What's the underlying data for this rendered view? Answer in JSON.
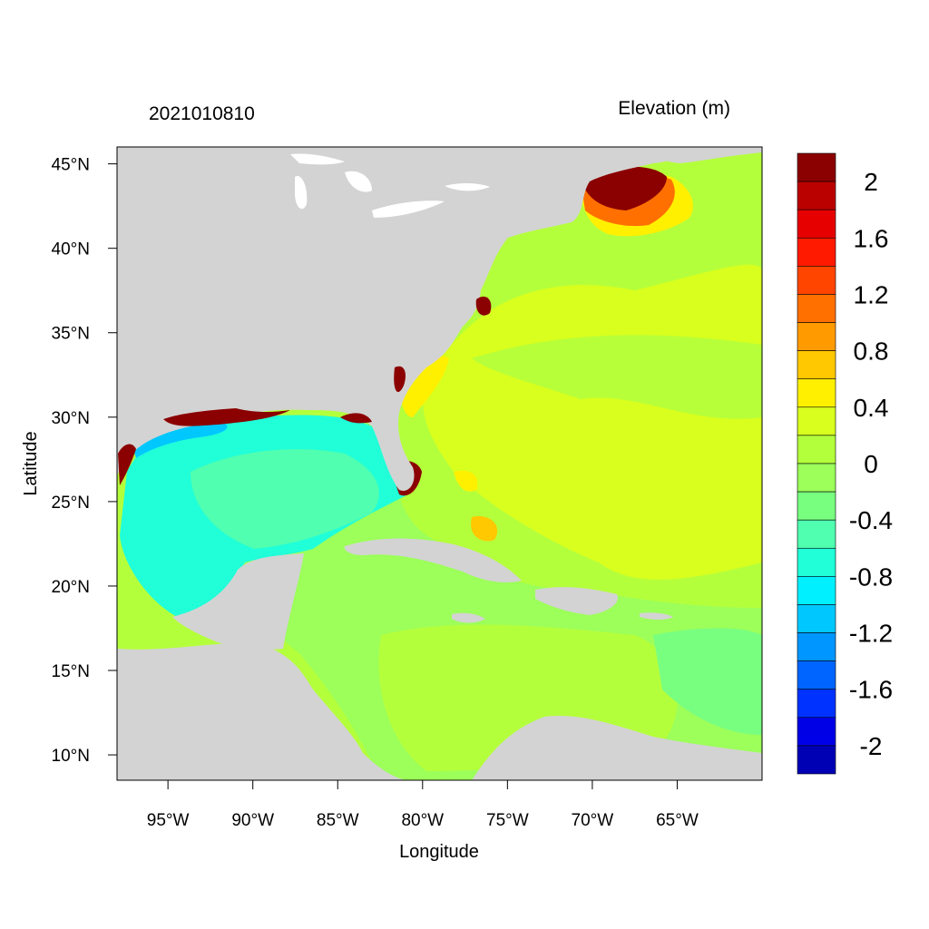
{
  "header": {
    "timestamp": "2021010810",
    "variable": "Elevation (m)"
  },
  "axes": {
    "xlabel": "Longitude",
    "ylabel": "Latitude",
    "xticks": [
      {
        "value": -95,
        "label": "95°W"
      },
      {
        "value": -90,
        "label": "90°W"
      },
      {
        "value": -85,
        "label": "85°W"
      },
      {
        "value": -80,
        "label": "80°W"
      },
      {
        "value": -75,
        "label": "75°W"
      },
      {
        "value": -70,
        "label": "70°W"
      },
      {
        "value": -65,
        "label": "65°W"
      }
    ],
    "yticks": [
      {
        "value": 45,
        "label": "45°N"
      },
      {
        "value": 40,
        "label": "40°N"
      },
      {
        "value": 35,
        "label": "35°N"
      },
      {
        "value": 30,
        "label": "30°N"
      },
      {
        "value": 25,
        "label": "25°N"
      },
      {
        "value": 20,
        "label": "20°N"
      },
      {
        "value": 15,
        "label": "15°N"
      },
      {
        "value": 10,
        "label": "10°N"
      }
    ],
    "xlim": [
      -98,
      -60
    ],
    "ylim": [
      8.5,
      46
    ]
  },
  "colorbar": {
    "labels": [
      "2",
      "1.6",
      "1.2",
      "0.8",
      "0.4",
      "0",
      "-0.4",
      "-0.8",
      "-1.2",
      "-1.6",
      "-2"
    ],
    "colors_top_to_bottom": [
      "#8b0000",
      "#bb0000",
      "#e60000",
      "#ff1a00",
      "#ff4500",
      "#ff7000",
      "#ff9a00",
      "#ffc800",
      "#fff000",
      "#d8ff1e",
      "#b4ff3c",
      "#9cff5a",
      "#78ff80",
      "#50ffb0",
      "#20ffd8",
      "#00f0ff",
      "#00c8ff",
      "#0096ff",
      "#0064ff",
      "#0032ff",
      "#0000e6",
      "#0000b4"
    ]
  },
  "colors": {
    "land": "#d3d3d3",
    "water_lakes": "#ffffff"
  }
}
